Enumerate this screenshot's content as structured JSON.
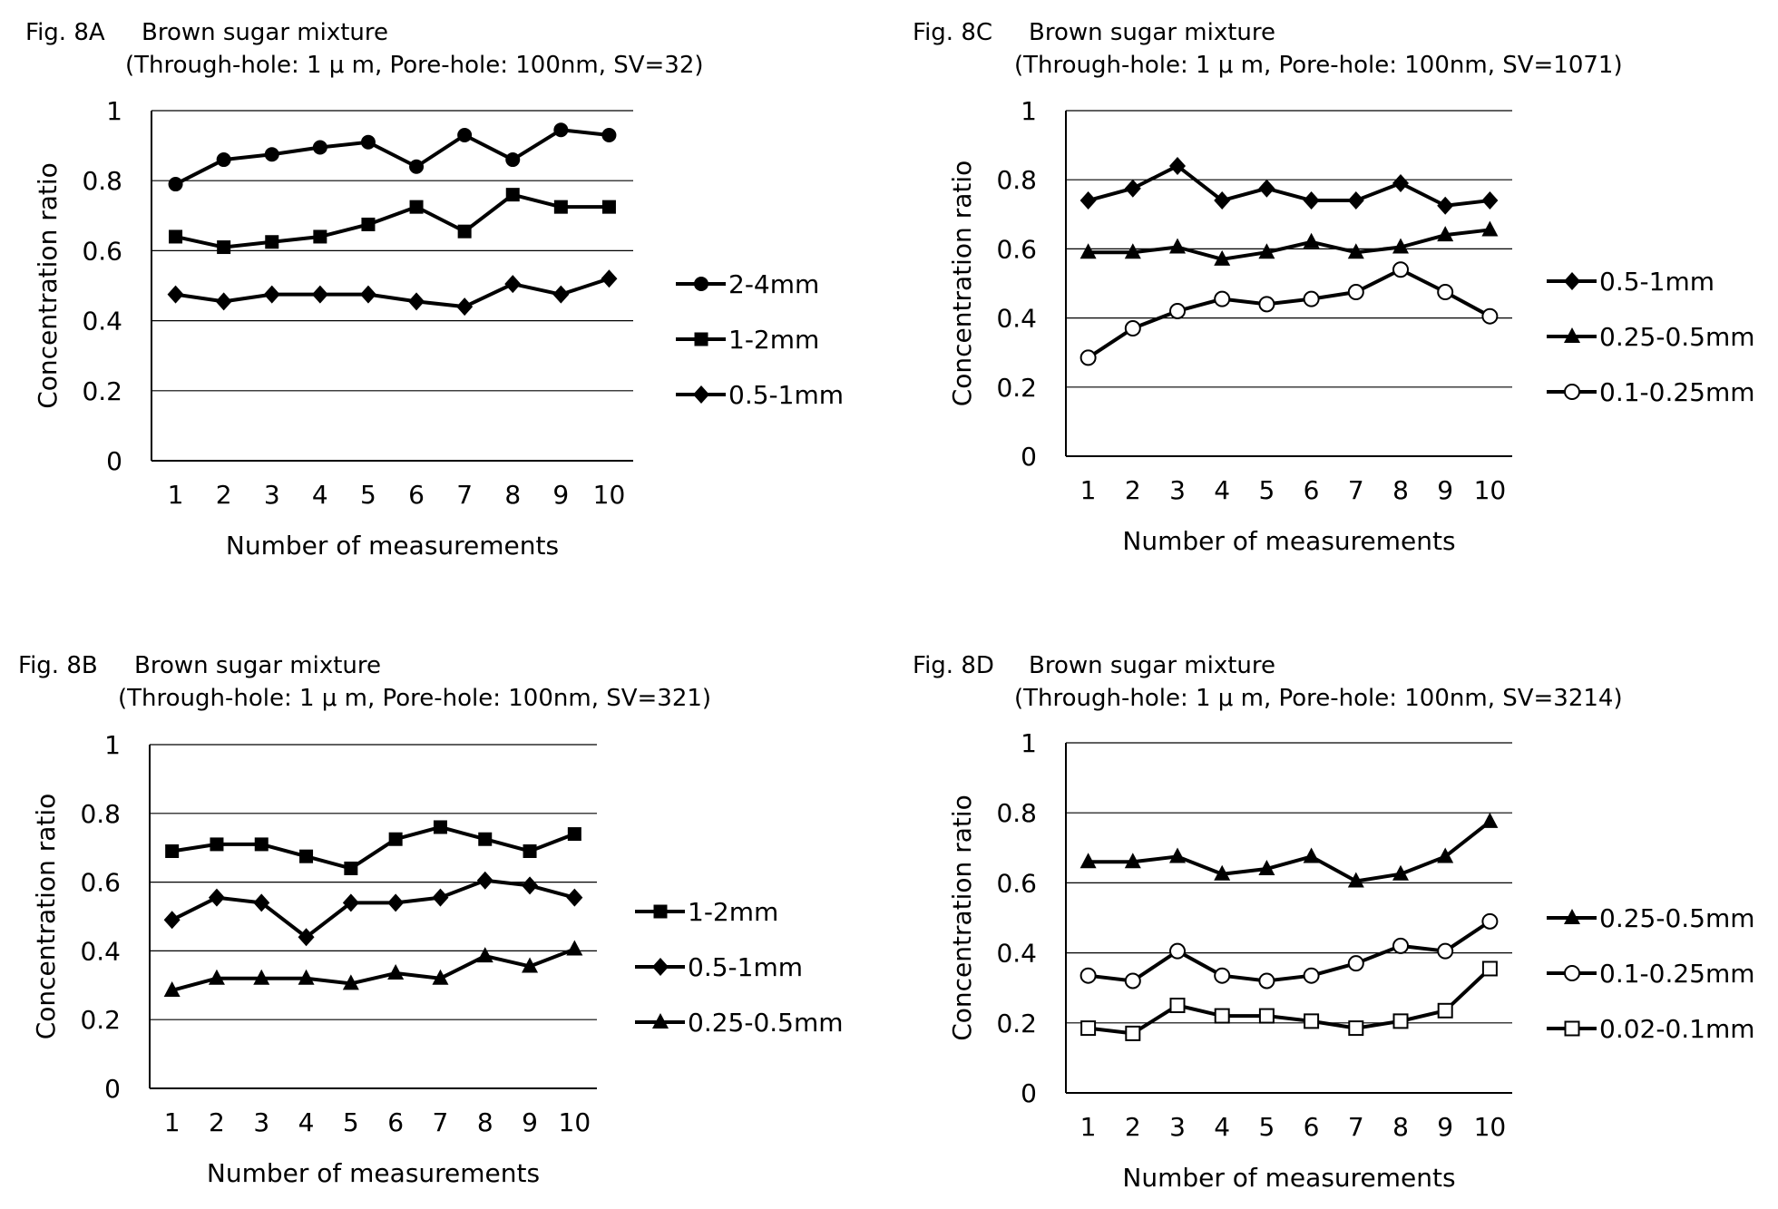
{
  "chart_data": [
    {
      "type": "line",
      "fig_label": "Fig. 8A",
      "title": "Brown sugar mixture",
      "subtitle": "(Through-hole: 1 μ m, Pore-hole: 100nm, SV=32)",
      "xlabel": "Number of measurements",
      "ylabel": "Concentration ratio",
      "x": [
        1,
        2,
        3,
        4,
        5,
        6,
        7,
        8,
        9,
        10
      ],
      "ylim": [
        0,
        1
      ],
      "yticks": [
        "0",
        "0.2",
        "0.4",
        "0.6",
        "0.8",
        "1"
      ],
      "grid": true,
      "legend_position": "right",
      "series": [
        {
          "name": "2-4mm",
          "marker": "circle",
          "values": [
            0.79,
            0.86,
            0.875,
            0.895,
            0.91,
            0.84,
            0.93,
            0.86,
            0.945,
            0.93
          ]
        },
        {
          "name": "1-2mm",
          "marker": "square",
          "values": [
            0.64,
            0.61,
            0.625,
            0.64,
            0.675,
            0.725,
            0.655,
            0.76,
            0.725,
            0.725
          ]
        },
        {
          "name": "0.5-1mm",
          "marker": "diamond",
          "values": [
            0.475,
            0.455,
            0.475,
            0.475,
            0.475,
            0.455,
            0.44,
            0.505,
            0.475,
            0.52
          ]
        }
      ]
    },
    {
      "type": "line",
      "fig_label": "Fig. 8B",
      "title": "Brown sugar mixture",
      "subtitle": "(Through-hole: 1 μ m, Pore-hole: 100nm, SV=321)",
      "xlabel": "Number of measurements",
      "ylabel": "Concentration ratio",
      "x": [
        1,
        2,
        3,
        4,
        5,
        6,
        7,
        8,
        9,
        10
      ],
      "ylim": [
        0,
        1
      ],
      "yticks": [
        "0",
        "0.2",
        "0.4",
        "0.6",
        "0.8",
        "1"
      ],
      "grid": true,
      "legend_position": "right",
      "series": [
        {
          "name": "1-2mm",
          "marker": "square",
          "values": [
            0.69,
            0.71,
            0.71,
            0.675,
            0.64,
            0.725,
            0.76,
            0.725,
            0.69,
            0.74
          ]
        },
        {
          "name": "0.5-1mm",
          "marker": "diamond",
          "values": [
            0.49,
            0.555,
            0.54,
            0.44,
            0.54,
            0.54,
            0.555,
            0.605,
            0.59,
            0.555
          ]
        },
        {
          "name": "0.25-0.5mm",
          "marker": "triangle",
          "values": [
            0.285,
            0.32,
            0.32,
            0.32,
            0.305,
            0.335,
            0.32,
            0.385,
            0.355,
            0.405
          ]
        }
      ]
    },
    {
      "type": "line",
      "fig_label": "Fig. 8C",
      "title": "Brown sugar mixture",
      "subtitle": "(Through-hole: 1 μ m, Pore-hole: 100nm, SV=1071)",
      "xlabel": "Number of measurements",
      "ylabel": "Concentration ratio",
      "x": [
        1,
        2,
        3,
        4,
        5,
        6,
        7,
        8,
        9,
        10
      ],
      "ylim": [
        0,
        1
      ],
      "yticks": [
        "0",
        "0.2",
        "0.4",
        "0.6",
        "0.8",
        "1"
      ],
      "grid": true,
      "legend_position": "right",
      "series": [
        {
          "name": "0.5-1mm",
          "marker": "diamond",
          "values": [
            0.74,
            0.775,
            0.84,
            0.74,
            0.775,
            0.74,
            0.74,
            0.79,
            0.725,
            0.74
          ]
        },
        {
          "name": "0.25-0.5mm",
          "marker": "triangle",
          "values": [
            0.59,
            0.59,
            0.605,
            0.57,
            0.59,
            0.62,
            0.59,
            0.605,
            0.64,
            0.655
          ]
        },
        {
          "name": "0.1-0.25mm",
          "marker": "open-circle",
          "values": [
            0.285,
            0.37,
            0.42,
            0.455,
            0.44,
            0.455,
            0.475,
            0.54,
            0.475,
            0.405
          ]
        }
      ]
    },
    {
      "type": "line",
      "fig_label": "Fig. 8D",
      "title": "Brown sugar mixture",
      "subtitle": "(Through-hole: 1 μ m, Pore-hole: 100nm, SV=3214)",
      "xlabel": "Number of measurements",
      "ylabel": "Concentration ratio",
      "x": [
        1,
        2,
        3,
        4,
        5,
        6,
        7,
        8,
        9,
        10
      ],
      "ylim": [
        0,
        1
      ],
      "yticks": [
        "0",
        "0.2",
        "0.4",
        "0.6",
        "0.8",
        "1"
      ],
      "grid": true,
      "legend_position": "right",
      "series": [
        {
          "name": "0.25-0.5mm",
          "marker": "triangle",
          "values": [
            0.66,
            0.66,
            0.675,
            0.625,
            0.64,
            0.675,
            0.605,
            0.625,
            0.675,
            0.775
          ]
        },
        {
          "name": "0.1-0.25mm",
          "marker": "open-circle",
          "values": [
            0.335,
            0.32,
            0.405,
            0.335,
            0.32,
            0.335,
            0.37,
            0.42,
            0.405,
            0.49
          ]
        },
        {
          "name": "0.02-0.1mm",
          "marker": "open-square",
          "values": [
            0.185,
            0.17,
            0.25,
            0.22,
            0.22,
            0.205,
            0.185,
            0.205,
            0.235,
            0.355
          ]
        }
      ]
    }
  ]
}
